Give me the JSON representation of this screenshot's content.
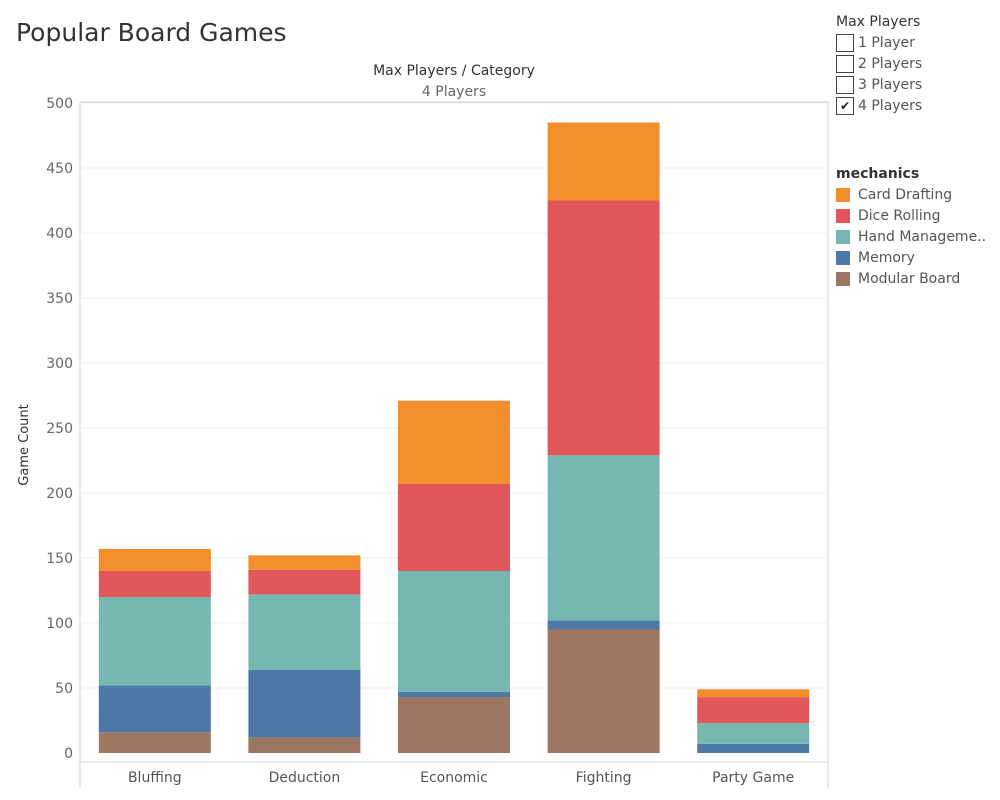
{
  "title": "Popular Board Games",
  "filter": {
    "title": "Max Players",
    "options": [
      {
        "label": "1 Player",
        "checked": false
      },
      {
        "label": "2 Players",
        "checked": false
      },
      {
        "label": "3 Players",
        "checked": false
      },
      {
        "label": "4 Players",
        "checked": true
      }
    ]
  },
  "chart_data": {
    "type": "bar",
    "stacked": true,
    "title": "Popular Board Games",
    "header": "Max Players / Category",
    "panel": "4 Players",
    "xlabel": "",
    "ylabel": "Game Count",
    "ylim": [
      0,
      510
    ],
    "yticks": [
      0,
      50,
      100,
      150,
      200,
      250,
      300,
      350,
      400,
      450,
      500
    ],
    "grid": true,
    "legend_title": "mechanics",
    "legend_position": "right",
    "categories": [
      "Bluffing",
      "Deduction",
      "Economic",
      "Fighting",
      "Party Game"
    ],
    "series": [
      {
        "name": "Modular Board",
        "color": "#9c7660",
        "values": [
          16,
          12,
          43,
          95,
          0
        ]
      },
      {
        "name": "Memory",
        "color": "#4e79a7",
        "values": [
          36,
          52,
          4,
          7,
          7
        ]
      },
      {
        "name": "Hand Manageme..",
        "color": "#76b7b2",
        "values": [
          68,
          58,
          93,
          127,
          16
        ]
      },
      {
        "name": "Dice Rolling",
        "color": "#e15759",
        "values": [
          20,
          19,
          67,
          196,
          20
        ]
      },
      {
        "name": "Card Drafting",
        "color": "#f28e2b",
        "values": [
          17,
          11,
          64,
          60,
          6
        ]
      }
    ],
    "legend_order": [
      "Card Drafting",
      "Dice Rolling",
      "Hand Manageme..",
      "Memory",
      "Modular Board"
    ]
  }
}
